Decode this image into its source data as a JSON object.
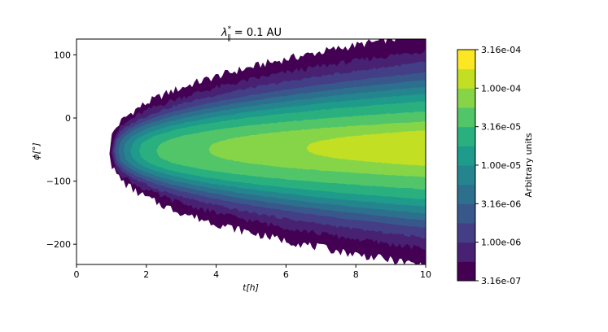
{
  "chart_data": {
    "type": "heatmap",
    "subtype": "filled-contour",
    "title": "λ∥* = 0.1 AU",
    "title_parts": {
      "symbol": "λ",
      "superscript": "*",
      "subscript": "∥",
      "value": " = 0.1 AU"
    },
    "xlabel": "t[h]",
    "ylabel": "ϕ[°]",
    "xlim": [
      0,
      10
    ],
    "ylim": [
      -232,
      125
    ],
    "x_ticks": [
      0,
      2,
      4,
      6,
      8,
      10
    ],
    "x_tick_labels": [
      "0",
      "2",
      "4",
      "6",
      "8",
      "10"
    ],
    "y_ticks": [
      100,
      0,
      -100,
      -200
    ],
    "y_tick_labels": [
      "100",
      "0",
      "−100",
      "−200"
    ],
    "grid": false,
    "colorscale": "viridis",
    "colorbar": {
      "label": "Arbitrary units",
      "scale": "log",
      "range": [
        3.16e-07,
        0.000316
      ],
      "tick_values": [
        3.16e-07,
        1e-06,
        3.16e-06,
        1e-05,
        3.16e-05,
        0.0001,
        0.000316
      ],
      "tick_labels": [
        "3.16e-07",
        "1.00e-06",
        "3.16e-06",
        "1.00e-05",
        "3.16e-05",
        "1.00e-04",
        "3.16e-04"
      ],
      "levels": 12
    },
    "contour_levels": [
      {
        "level": 1,
        "onset_t": 0.95,
        "center_phi": -52,
        "half_width_max": 185
      },
      {
        "level": 2,
        "onset_t": 1.0,
        "center_phi": -52,
        "half_width_max": 158
      },
      {
        "level": 3,
        "onset_t": 1.05,
        "center_phi": -52,
        "half_width_max": 140
      },
      {
        "level": 4,
        "onset_t": 1.1,
        "center_phi": -52,
        "half_width_max": 124
      },
      {
        "level": 5,
        "onset_t": 1.2,
        "center_phi": -52,
        "half_width_max": 112
      },
      {
        "level": 6,
        "onset_t": 1.35,
        "center_phi": -52,
        "half_width_max": 101
      },
      {
        "level": 7,
        "onset_t": 1.55,
        "center_phi": -52,
        "half_width_max": 90
      },
      {
        "level": 8,
        "onset_t": 1.8,
        "center_phi": -52,
        "half_width_max": 78
      },
      {
        "level": 9,
        "onset_t": 2.3,
        "center_phi": -52,
        "half_width_max": 62
      },
      {
        "level": 10,
        "onset_t": 3.8,
        "center_phi": -50,
        "half_width_max": 44
      },
      {
        "level": 11,
        "onset_t": 6.6,
        "center_phi": -48,
        "half_width_max": 28
      }
    ],
    "peak_region": {
      "t": [
        6.6,
        10
      ],
      "phi": [
        -80,
        -20
      ],
      "level": 11
    }
  }
}
